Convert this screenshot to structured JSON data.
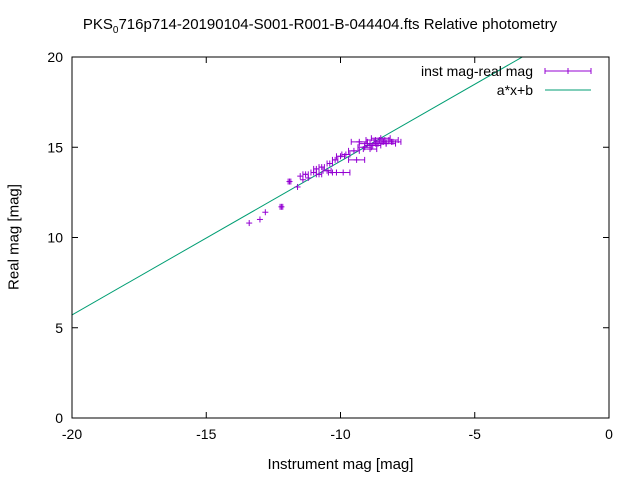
{
  "chart_data": {
    "type": "scatter",
    "title_prefix": "PKS",
    "title_sub": "0",
    "title_rest": "716p714-20190104-S001-R001-B-044404.fts Relative photometry",
    "xlabel": "Instrument mag [mag]",
    "ylabel": "Real mag [mag]",
    "xlim": [
      -20,
      0
    ],
    "ylim": [
      0,
      20
    ],
    "xticks": [
      -20,
      -15,
      -10,
      -5,
      0
    ],
    "yticks": [
      0,
      5,
      10,
      15,
      20
    ],
    "grid": false,
    "legend_position": "top-right",
    "series": [
      {
        "name": "inst mag-real mag",
        "kind": "errorbar-points",
        "color": "#9400d3",
        "points": [
          {
            "x": -13.4,
            "y": 10.8,
            "xerr": 0.0
          },
          {
            "x": -13.0,
            "y": 11.0,
            "xerr": 0.0
          },
          {
            "x": -12.8,
            "y": 11.4,
            "xerr": 0.0
          },
          {
            "x": -12.2,
            "y": 11.7,
            "xerr": 0.05
          },
          {
            "x": -11.9,
            "y": 13.1,
            "xerr": 0.05
          },
          {
            "x": -11.6,
            "y": 12.8,
            "xerr": 0.0
          },
          {
            "x": -11.5,
            "y": 13.4,
            "xerr": 0.0
          },
          {
            "x": -11.4,
            "y": 13.2,
            "xerr": 0.0
          },
          {
            "x": -11.3,
            "y": 13.5,
            "xerr": 0.1
          },
          {
            "x": -11.2,
            "y": 13.3,
            "xerr": 0.0
          },
          {
            "x": -11.0,
            "y": 13.6,
            "xerr": 0.1
          },
          {
            "x": -10.9,
            "y": 13.8,
            "xerr": 0.1
          },
          {
            "x": -10.8,
            "y": 13.5,
            "xerr": 0.1
          },
          {
            "x": -10.7,
            "y": 13.9,
            "xerr": 0.1
          },
          {
            "x": -10.5,
            "y": 13.7,
            "xerr": 0.15
          },
          {
            "x": -10.4,
            "y": 14.1,
            "xerr": 0.1
          },
          {
            "x": -10.3,
            "y": 13.6,
            "xerr": 0.15
          },
          {
            "x": -10.2,
            "y": 14.3,
            "xerr": 0.1
          },
          {
            "x": -10.0,
            "y": 14.5,
            "xerr": 0.15
          },
          {
            "x": -9.8,
            "y": 14.6,
            "xerr": 0.15
          },
          {
            "x": -9.9,
            "y": 13.6,
            "xerr": 0.25
          },
          {
            "x": -9.5,
            "y": 14.8,
            "xerr": 0.2
          },
          {
            "x": -9.4,
            "y": 14.3,
            "xerr": 0.3
          },
          {
            "x": -9.3,
            "y": 15.3,
            "xerr": 0.3
          },
          {
            "x": -9.1,
            "y": 15.0,
            "xerr": 0.25
          },
          {
            "x": -9.0,
            "y": 15.2,
            "xerr": 0.3
          },
          {
            "x": -8.9,
            "y": 14.9,
            "xerr": 0.25
          },
          {
            "x": -8.8,
            "y": 15.1,
            "xerr": 0.3
          },
          {
            "x": -8.7,
            "y": 15.4,
            "xerr": 0.35
          },
          {
            "x": -8.6,
            "y": 15.2,
            "xerr": 0.3
          },
          {
            "x": -8.5,
            "y": 15.5,
            "xerr": 0.35
          },
          {
            "x": -8.4,
            "y": 15.3,
            "xerr": 0.35
          },
          {
            "x": -8.3,
            "y": 15.2,
            "xerr": 0.35
          },
          {
            "x": -8.2,
            "y": 15.4,
            "xerr": 0.35
          },
          {
            "x": -8.1,
            "y": 15.3,
            "xerr": 0.35
          }
        ]
      },
      {
        "name": "a*x+b",
        "kind": "line",
        "color": "#009e73",
        "slope": 0.852,
        "intercept": 22.75
      }
    ]
  }
}
